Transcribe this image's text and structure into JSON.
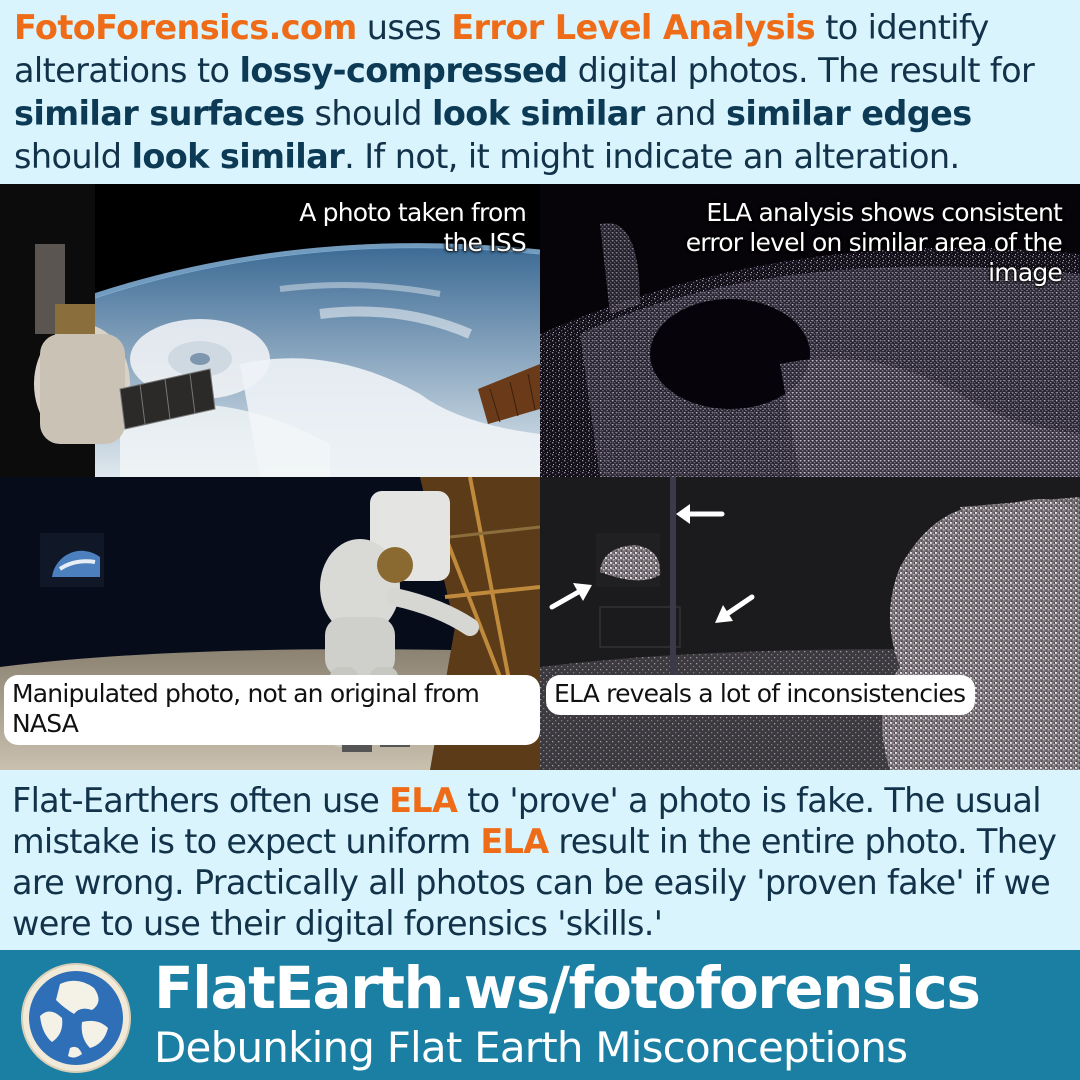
{
  "intro": {
    "site_name": "FotoForensics.com",
    "t1": " uses ",
    "method": "Error Level Analysis",
    "t2": " to identify alterations to ",
    "b_lossy": "lossy-compressed",
    "t3": " digital photos. The result for ",
    "b_surfaces": "similar surfaces",
    "t4": " should ",
    "b_look1": "look similar",
    "t5": " and ",
    "b_edges": "similar edges",
    "t6": " should ",
    "b_look2": "look similar",
    "t7": ". If not, it might indicate an alteration."
  },
  "panels": {
    "iss_caption": "A photo taken from the ISS",
    "ela_iss_caption": "ELA analysis shows consistent error level on similar area of the image",
    "moon_caption": "Manipulated photo, not an original from NASA",
    "ela_moon_caption": "ELA reveals a lot of inconsistencies"
  },
  "conclusion": {
    "t1": "Flat-Earthers often use ",
    "ela1": "ELA",
    "t2": " to 'prove' a photo is fake. The usual mistake is to expect uniform ",
    "ela2": "ELA",
    "t3": " result in the entire photo. They are wrong. Practically all photos can be easily 'proven fake' if we were to use their digital forensics 'skills.'"
  },
  "footer": {
    "site": "FlatEarth.ws/fotoforensics",
    "tagline": "Debunking Flat Earth Misconceptions",
    "logo_icon": "globe-logo-icon"
  },
  "colors": {
    "accent": "#ee6c18",
    "text_bg": "#d9f4fd",
    "footer_bg": "#1a7fa3"
  }
}
